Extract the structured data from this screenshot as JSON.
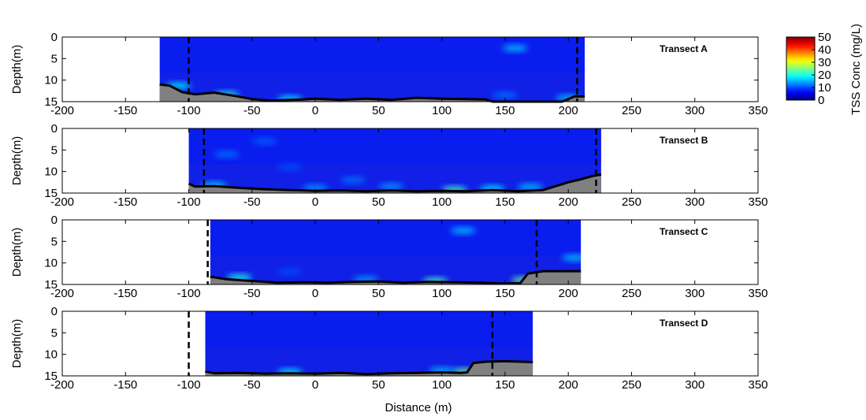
{
  "chart_data": {
    "type": "heatmap",
    "xlabel": "Distance (m)",
    "xlim": [
      -200,
      350
    ],
    "xticks": [
      -200,
      -150,
      -100,
      -50,
      0,
      50,
      100,
      150,
      200,
      250,
      300,
      350
    ],
    "colorbar": {
      "label": "TSS Conc (mg/L)",
      "range": [
        0,
        50
      ],
      "ticks": [
        0,
        10,
        20,
        30,
        40,
        50
      ],
      "colormap": "jet"
    },
    "colors": {
      "bed": "#808080",
      "bed_line": "#000000",
      "background_water": "#1020e6",
      "frame": "#000000"
    },
    "panels": [
      {
        "label": "Transect A",
        "ylabel": "Depth(m)",
        "ylim": [
          0,
          15
        ],
        "yticks": [
          0,
          5,
          10,
          15
        ],
        "data_extent": [
          -123,
          213
        ],
        "dashed_lines": [
          -100,
          207
        ],
        "bed_profile": [
          [
            -123,
            11
          ],
          [
            -115,
            11.3
          ],
          [
            -105,
            12.8
          ],
          [
            -95,
            13.3
          ],
          [
            -80,
            12.9
          ],
          [
            -65,
            13.6
          ],
          [
            -50,
            14.4
          ],
          [
            -35,
            14.8
          ],
          [
            -20,
            14.6
          ],
          [
            -10,
            14.5
          ],
          [
            0,
            14.3
          ],
          [
            20,
            14.6
          ],
          [
            40,
            14.3
          ],
          [
            60,
            14.6
          ],
          [
            80,
            14.1
          ],
          [
            100,
            14.3
          ],
          [
            120,
            14.4
          ],
          [
            135,
            14.5
          ],
          [
            140,
            15
          ],
          [
            195,
            15
          ],
          [
            205,
            13.8
          ],
          [
            213,
            13.8
          ]
        ],
        "hotspots": [
          [
            -108,
            11.3,
            18
          ],
          [
            -70,
            13.4,
            20
          ],
          [
            -20,
            14.4,
            18
          ],
          [
            158,
            2.6,
            16
          ],
          [
            150,
            13.5,
            12
          ],
          [
            200,
            14.2,
            16
          ]
        ]
      },
      {
        "label": "Transect B",
        "ylabel": "Depth(m)",
        "ylim": [
          0,
          15
        ],
        "yticks": [
          0,
          5,
          10,
          15
        ],
        "data_extent": [
          -100,
          226
        ],
        "dashed_lines": [
          -88,
          222
        ],
        "bed_profile": [
          [
            -100,
            12.8
          ],
          [
            -95,
            13.5
          ],
          [
            -80,
            13.4
          ],
          [
            -60,
            13.8
          ],
          [
            -40,
            14.1
          ],
          [
            -20,
            14.3
          ],
          [
            0,
            14.5
          ],
          [
            20,
            14.4
          ],
          [
            40,
            14.6
          ],
          [
            60,
            14.4
          ],
          [
            80,
            14.6
          ],
          [
            100,
            14.5
          ],
          [
            120,
            14.6
          ],
          [
            140,
            14.3
          ],
          [
            160,
            14.6
          ],
          [
            180,
            14.3
          ],
          [
            200,
            12.5
          ],
          [
            210,
            11.8
          ],
          [
            220,
            11
          ],
          [
            226,
            10.7
          ]
        ],
        "hotspots": [
          [
            -70,
            6,
            12
          ],
          [
            -40,
            3,
            11
          ],
          [
            -20,
            9,
            10
          ],
          [
            30,
            12,
            12
          ],
          [
            60,
            13.5,
            14
          ],
          [
            110,
            14.2,
            22
          ],
          [
            140,
            14,
            18
          ],
          [
            170,
            13.6,
            16
          ],
          [
            -80,
            13.2,
            17
          ],
          [
            0,
            13.8,
            14
          ]
        ]
      },
      {
        "label": "Transect C",
        "ylabel": "Depth(m)",
        "ylim": [
          0,
          15
        ],
        "yticks": [
          0,
          5,
          10,
          15
        ],
        "data_extent": [
          -83,
          210
        ],
        "dashed_lines": [
          -85,
          175
        ],
        "bed_profile": [
          [
            -83,
            13.2
          ],
          [
            -70,
            13.8
          ],
          [
            -50,
            14.2
          ],
          [
            -30,
            14.6
          ],
          [
            -10,
            14.5
          ],
          [
            10,
            14.6
          ],
          [
            30,
            14.4
          ],
          [
            50,
            14.3
          ],
          [
            70,
            14.6
          ],
          [
            90,
            14.4
          ],
          [
            110,
            14.5
          ],
          [
            130,
            14.6
          ],
          [
            150,
            14.8
          ],
          [
            162,
            14.7
          ],
          [
            168,
            12.5
          ],
          [
            180,
            11.9
          ],
          [
            210,
            11.9
          ]
        ],
        "hotspots": [
          [
            117,
            2.5,
            16
          ],
          [
            -60,
            13.4,
            20
          ],
          [
            95,
            14.2,
            22
          ],
          [
            165,
            14,
            24
          ],
          [
            205,
            8.8,
            16
          ],
          [
            -20,
            12,
            10
          ],
          [
            40,
            13.8,
            14
          ]
        ]
      },
      {
        "label": "Transect D",
        "ylabel": "Depth(m)",
        "ylim": [
          0,
          15
        ],
        "yticks": [
          0,
          5,
          10,
          15
        ],
        "data_extent": [
          -87,
          172
        ],
        "dashed_lines": [
          -100,
          140
        ],
        "bed_profile": [
          [
            -87,
            14
          ],
          [
            -80,
            14.4
          ],
          [
            -60,
            14.3
          ],
          [
            -40,
            14.5
          ],
          [
            -20,
            14.4
          ],
          [
            0,
            14.5
          ],
          [
            20,
            14.3
          ],
          [
            40,
            14.6
          ],
          [
            60,
            14.4
          ],
          [
            80,
            14.3
          ],
          [
            100,
            14.2
          ],
          [
            115,
            14.3
          ],
          [
            120,
            14.2
          ],
          [
            125,
            12
          ],
          [
            135,
            11.7
          ],
          [
            150,
            11.6
          ],
          [
            172,
            11.8
          ]
        ],
        "hotspots": [
          [
            -20,
            14.1,
            18
          ],
          [
            118,
            14,
            24
          ],
          [
            100,
            13.8,
            16
          ]
        ]
      }
    ]
  }
}
